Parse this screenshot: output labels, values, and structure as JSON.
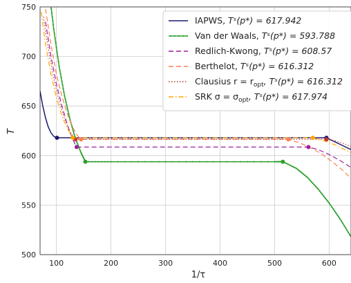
{
  "chart_data": {
    "type": "line",
    "xlabel": "1/τ",
    "ylabel": "T",
    "xlim": [
      70,
      640
    ],
    "ylim": [
      500,
      750
    ],
    "xticks": [
      100,
      200,
      300,
      400,
      500,
      600
    ],
    "yticks": [
      500,
      550,
      600,
      650,
      700,
      750
    ],
    "grid": true,
    "legend_position": "top-right",
    "series": [
      {
        "name": "IAPWS,   Tˢ(p*) = 617.942",
        "color": "#191970",
        "style": "solid",
        "markers": false,
        "x": [
          70,
          75,
          80,
          85,
          90,
          95,
          100,
          110,
          200,
          300,
          400,
          500,
          580,
          595,
          610,
          625,
          640
        ],
        "y": [
          665,
          650,
          638,
          629,
          623,
          619.5,
          617.942,
          617.942,
          617.942,
          617.942,
          617.942,
          617.942,
          617.942,
          617.942,
          614,
          610,
          606
        ]
      },
      {
        "name": "Van der Waals,   Tˢ(p*) = 593.788",
        "color": "#2ca02c",
        "style": "solid",
        "markers": true,
        "x": [
          88,
          95,
          105,
          115,
          125,
          135,
          145,
          153,
          200,
          300,
          400,
          500,
          515,
          540,
          560,
          580,
          600,
          620,
          640
        ],
        "y": [
          760,
          728,
          690,
          660,
          636,
          617,
          603,
          593.788,
          593.788,
          593.788,
          593.788,
          593.788,
          593.788,
          587,
          578,
          566,
          552,
          536,
          518
        ]
      },
      {
        "name": "Redlich-Kwong,   Tˢ(p*) = 608.57",
        "color": "#9b1f9b",
        "style": "dashed",
        "markers": false,
        "x": [
          80,
          90,
          100,
          110,
          120,
          130,
          137,
          200,
          300,
          400,
          500,
          562,
          580,
          600,
          620,
          640
        ],
        "y": [
          735,
          700,
          672,
          650,
          631,
          616,
          608.57,
          608.57,
          608.57,
          608.57,
          608.57,
          608.57,
          606,
          601,
          595,
          588
        ]
      },
      {
        "name": "Berthelot,       Tˢ(p*) = 616.312",
        "color": "#ff7f50",
        "style": "dashed",
        "markers": false,
        "x": [
          80,
          90,
          100,
          110,
          120,
          130,
          140,
          145,
          200,
          300,
          400,
          500,
          525,
          545,
          565,
          585,
          605,
          625,
          640
        ],
        "y": [
          748,
          712,
          682,
          660,
          642,
          628,
          619,
          616.312,
          616.312,
          616.312,
          616.312,
          616.312,
          616.312,
          613,
          608,
          602,
          594,
          585,
          577
        ]
      },
      {
        "name": "Clausius r = r_opt, Tˢ(p*) = 616.312",
        "color": "#c0392b",
        "style": "dotted",
        "markers": false,
        "x": [
          76,
          85,
          95,
          105,
          115,
          125,
          135,
          200,
          300,
          400,
          500,
          595,
          610,
          625,
          640
        ],
        "y": [
          740,
          708,
          678,
          655,
          637,
          624,
          616.312,
          616.312,
          616.312,
          616.312,
          616.312,
          616.312,
          615,
          612.5,
          609
        ]
      },
      {
        "name": "SRK σ = σ_opt,        Tˢ(p*) = 617.974",
        "color": "#ffa500",
        "style": "dashdot",
        "markers": false,
        "x": [
          72,
          80,
          90,
          100,
          110,
          120,
          130,
          200,
          300,
          400,
          500,
          570,
          590,
          610,
          625,
          640
        ],
        "y": [
          745,
          712,
          682,
          658,
          640,
          627,
          617.974,
          617.974,
          617.974,
          617.974,
          617.974,
          617.974,
          615,
          611,
          607,
          603
        ]
      }
    ],
    "points": [
      {
        "x": 101,
        "y": 617.942,
        "color": "#191970"
      },
      {
        "x": 595,
        "y": 617.942,
        "color": "#191970"
      },
      {
        "x": 153,
        "y": 593.788,
        "color": "#2ca02c"
      },
      {
        "x": 515,
        "y": 593.788,
        "color": "#2ca02c"
      },
      {
        "x": 137,
        "y": 608.57,
        "color": "#9b1f9b"
      },
      {
        "x": 562,
        "y": 608.57,
        "color": "#9b1f9b"
      },
      {
        "x": 145,
        "y": 616.312,
        "color": "#ff7f50"
      },
      {
        "x": 525,
        "y": 616.312,
        "color": "#ff7f50"
      },
      {
        "x": 135,
        "y": 616.312,
        "color": "#c0392b"
      },
      {
        "x": 595,
        "y": 616.312,
        "color": "#c0392b"
      },
      {
        "x": 130,
        "y": 617.974,
        "color": "#ffa500"
      },
      {
        "x": 570,
        "y": 617.974,
        "color": "#ffa500"
      }
    ]
  },
  "legend": [
    {
      "label": "IAPWS,   ",
      "eq": "Tˢ(p*) = 617.942"
    },
    {
      "label": "Van der Waals,   ",
      "eq": "Tˢ(p*) = 593.788"
    },
    {
      "label": "Redlich-Kwong,   ",
      "eq": "Tˢ(p*) = 608.57"
    },
    {
      "label": "Berthelot,      ",
      "eq": "Tˢ(p*) = 616.312"
    },
    {
      "label": "Clausius r = r",
      "sub": "opt",
      "eq": ", Tˢ(p*) = 616.312"
    },
    {
      "label": "SRK σ = σ",
      "sub": "opt",
      "eq": ",        Tˢ(p*) = 617.974"
    }
  ]
}
